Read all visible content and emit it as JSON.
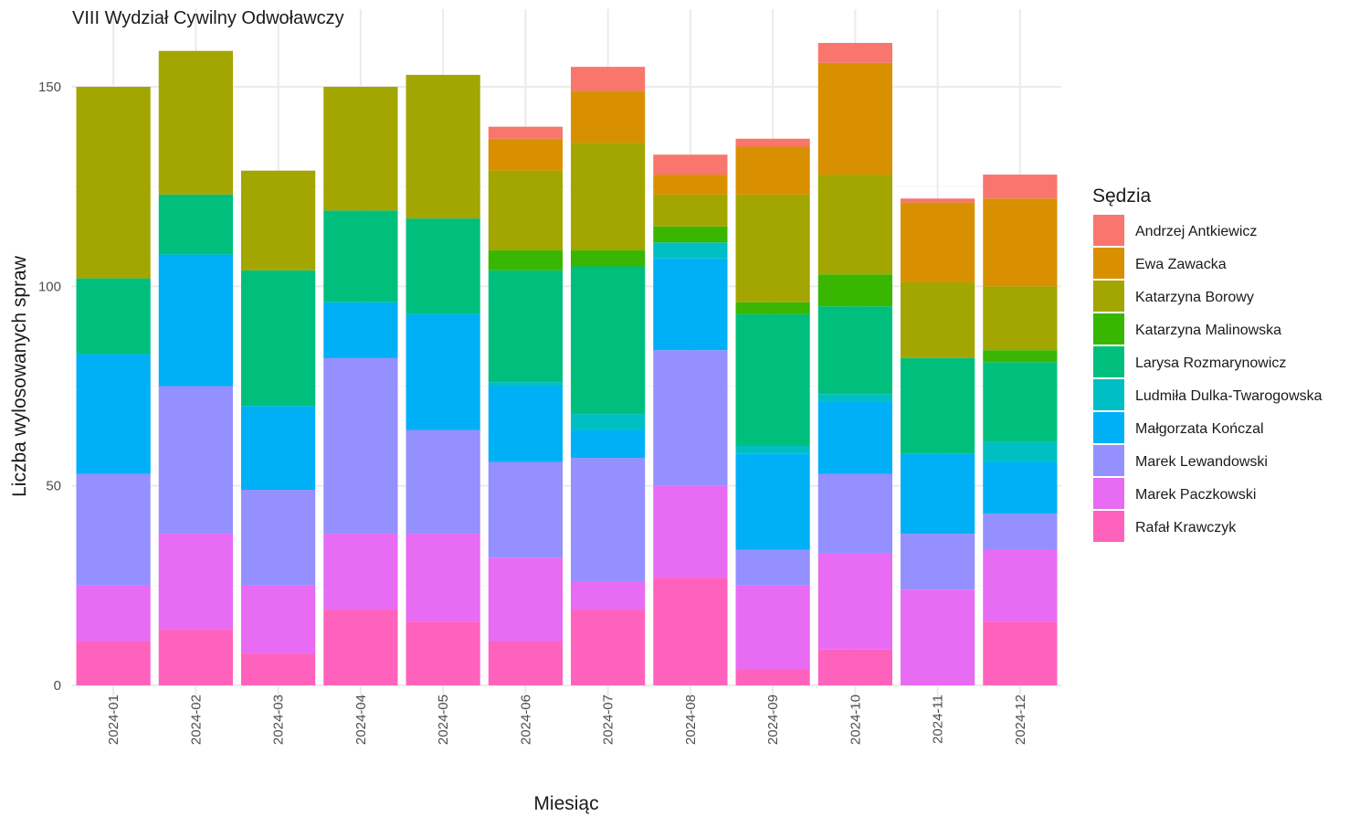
{
  "chart_data": {
    "type": "bar",
    "stacked": true,
    "title": "VIII Wydział Cywilny Odwoławczy",
    "xlabel": "Miesiąc",
    "ylabel": "Liczba wylosowanych spraw",
    "ylim": [
      0,
      165
    ],
    "yticks": [
      0,
      50,
      100,
      150
    ],
    "grid": true,
    "legend_position": "right",
    "legend_title": "Sędzia",
    "categories": [
      "2024-01",
      "2024-02",
      "2024-03",
      "2024-04",
      "2024-05",
      "2024-06",
      "2024-07",
      "2024-08",
      "2024-09",
      "2024-10",
      "2024-11",
      "2024-12"
    ],
    "series": [
      {
        "name": "Andrzej Antkiewicz",
        "color": "#F8766D",
        "values": [
          0,
          0,
          0,
          0,
          0,
          3,
          6,
          5,
          2,
          5,
          1,
          6
        ]
      },
      {
        "name": "Ewa Zawacka",
        "color": "#D89000",
        "values": [
          0,
          0,
          0,
          0,
          0,
          8,
          13,
          5,
          12,
          28,
          20,
          22
        ]
      },
      {
        "name": "Katarzyna Borowy",
        "color": "#A3A500",
        "values": [
          48,
          36,
          25,
          31,
          36,
          20,
          27,
          8,
          27,
          25,
          19,
          16
        ]
      },
      {
        "name": "Katarzyna Malinowska",
        "color": "#39B600",
        "values": [
          0,
          0,
          0,
          0,
          0,
          5,
          4,
          4,
          3,
          8,
          0,
          3
        ]
      },
      {
        "name": "Larysa Rozmarynowicz",
        "color": "#00BF7D",
        "values": [
          19,
          15,
          34,
          23,
          24,
          28,
          37,
          0,
          33,
          22,
          24,
          20
        ]
      },
      {
        "name": "Ludmiła Dulka-Twarogowska",
        "color": "#00BFC4",
        "values": [
          0,
          0,
          0,
          0,
          0,
          1,
          4,
          4,
          2,
          2,
          0,
          5
        ]
      },
      {
        "name": "Małgorzata Kończal",
        "color": "#00B0F6",
        "values": [
          30,
          33,
          21,
          14,
          29,
          19,
          7,
          23,
          24,
          18,
          20,
          13
        ]
      },
      {
        "name": "Marek Lewandowski",
        "color": "#9590FF",
        "values": [
          28,
          37,
          24,
          44,
          26,
          24,
          31,
          34,
          9,
          20,
          14,
          9
        ]
      },
      {
        "name": "Marek Paczkowski",
        "color": "#E76BF3",
        "values": [
          14,
          24,
          17,
          19,
          22,
          21,
          7,
          23,
          21,
          24,
          24,
          18
        ]
      },
      {
        "name": "Rafał Krawczyk",
        "color": "#FF62BC",
        "values": [
          11,
          14,
          8,
          19,
          16,
          11,
          19,
          27,
          4,
          9,
          0,
          16
        ]
      }
    ]
  }
}
